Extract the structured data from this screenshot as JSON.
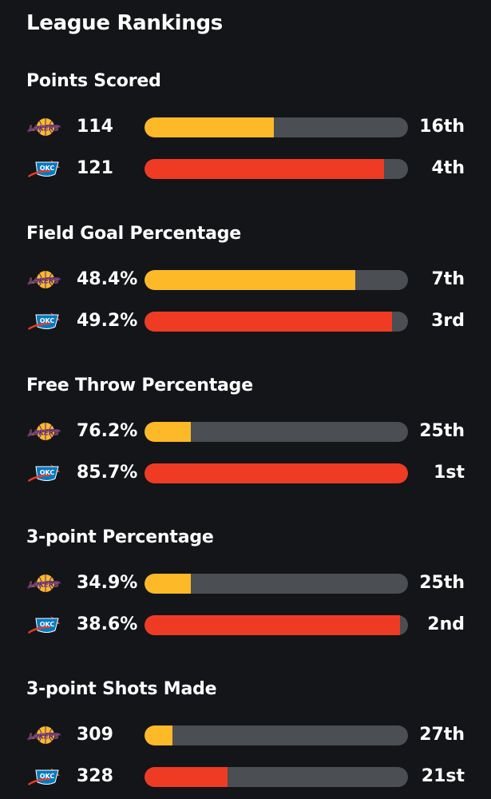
{
  "title": "League Rankings",
  "colors": {
    "background": "#141518",
    "track": "#4b4e52",
    "lakers": "#fdb927",
    "okc": "#ef3b24"
  },
  "teams": {
    "lakers": {
      "logo_text": "LAKERS",
      "icon": "lakers-logo-icon"
    },
    "okc": {
      "logo_text": "OKC",
      "icon": "okc-thunder-logo-icon"
    }
  },
  "sections": [
    {
      "title": "Points Scored",
      "rows": [
        {
          "team": "lakers",
          "value": "114",
          "rank": "16th",
          "fill": 0.49
        },
        {
          "team": "okc",
          "value": "121",
          "rank": "4th",
          "fill": 0.91
        }
      ]
    },
    {
      "title": "Field Goal Percentage",
      "rows": [
        {
          "team": "lakers",
          "value": "48.4%",
          "rank": "7th",
          "fill": 0.8
        },
        {
          "team": "okc",
          "value": "49.2%",
          "rank": "3rd",
          "fill": 0.94
        }
      ]
    },
    {
      "title": "Free Throw Percentage",
      "rows": [
        {
          "team": "lakers",
          "value": "76.2%",
          "rank": "25th",
          "fill": 0.175
        },
        {
          "team": "okc",
          "value": "85.7%",
          "rank": "1st",
          "fill": 1.0
        }
      ]
    },
    {
      "title": "3-point Percentage",
      "rows": [
        {
          "team": "lakers",
          "value": "34.9%",
          "rank": "25th",
          "fill": 0.175
        },
        {
          "team": "okc",
          "value": "38.6%",
          "rank": "2nd",
          "fill": 0.97
        }
      ]
    },
    {
      "title": "3-point Shots Made",
      "rows": [
        {
          "team": "lakers",
          "value": "309",
          "rank": "27th",
          "fill": 0.105
        },
        {
          "team": "okc",
          "value": "328",
          "rank": "21st",
          "fill": 0.315
        }
      ]
    }
  ]
}
